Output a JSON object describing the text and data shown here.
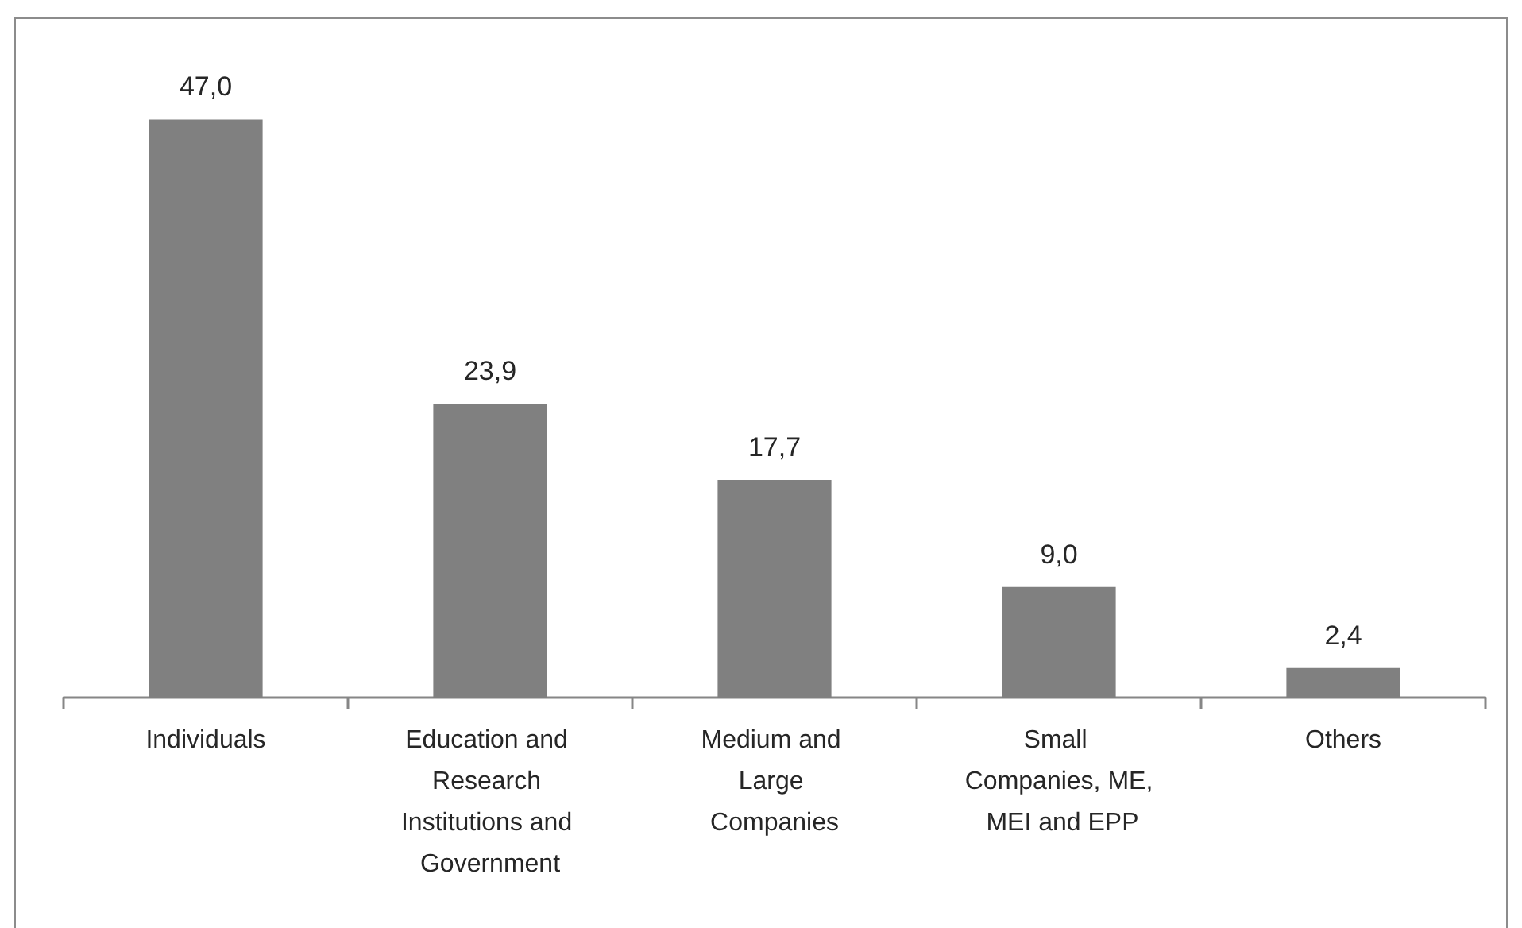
{
  "chart_data": {
    "type": "bar",
    "categories": [
      "Individuals",
      "Education and Research Institutions and Government",
      "Medium and Large Companies",
      "Small Companies, ME, MEI and EPP",
      "Others"
    ],
    "values": [
      47.0,
      23.9,
      17.7,
      9.0,
      2.4
    ],
    "color": "#808080",
    "value_labels": [
      "47,0",
      "23,9",
      "17,7",
      "9,0",
      "2,4"
    ]
  }
}
